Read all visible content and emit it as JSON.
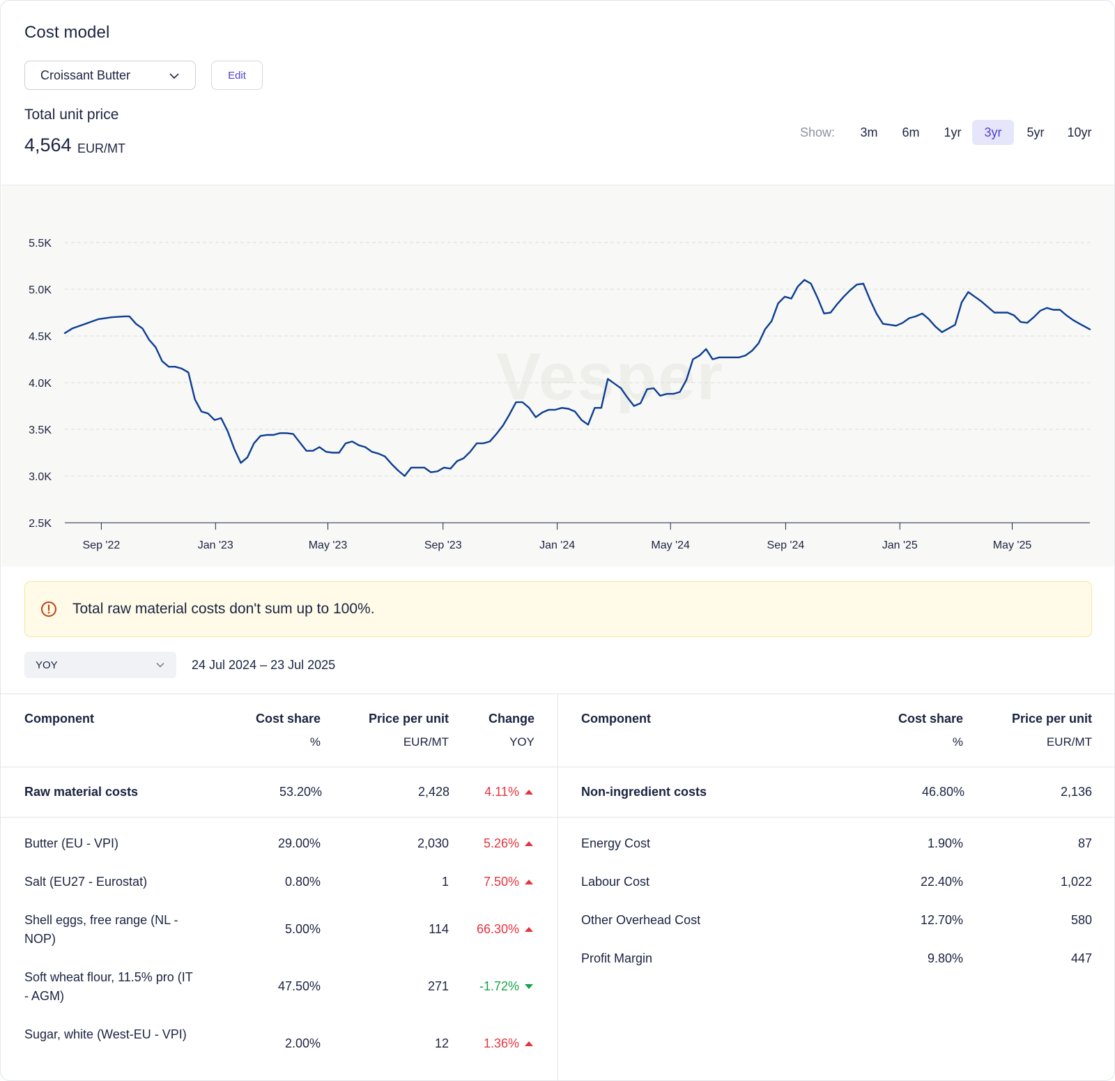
{
  "header": {
    "title": "Cost model",
    "product_select": "Croissant Butter",
    "edit_label": "Edit",
    "price_label": "Total unit price",
    "price_value": "4,564",
    "price_unit": "EUR/MT"
  },
  "range": {
    "show_label": "Show:",
    "options": [
      "3m",
      "6m",
      "1yr",
      "3yr",
      "5yr",
      "10yr"
    ],
    "active": "3yr"
  },
  "chart_data": {
    "type": "line",
    "watermark": "Vesper",
    "color": "#0b3d91",
    "ylim": [
      2500,
      5500
    ],
    "yticks": [
      2500,
      3000,
      3500,
      4000,
      4500,
      5000,
      5500
    ],
    "ytick_labels": [
      "2.5K",
      "3.0K",
      "3.5K",
      "4.0K",
      "4.5K",
      "5.0K",
      "5.5K"
    ],
    "xticks": [
      "2022-09-01",
      "2023-01-01",
      "2023-05-01",
      "2023-09-01",
      "2024-01-01",
      "2024-05-01",
      "2024-09-01",
      "2025-01-01",
      "2025-05-01"
    ],
    "xtick_labels": [
      "Sep '22",
      "Jan '23",
      "May '23",
      "Sep '23",
      "Jan '24",
      "May '24",
      "Sep '24",
      "Jan '25",
      "May '25"
    ],
    "xlim": [
      "2022-07-24",
      "2025-07-23"
    ],
    "series": [
      {
        "points": [
          [
            "2022-07-24",
            4530
          ],
          [
            "2022-08-01",
            4580
          ],
          [
            "2022-08-15",
            4630
          ],
          [
            "2022-08-29",
            4680
          ],
          [
            "2022-09-12",
            4700
          ],
          [
            "2022-09-26",
            4710
          ],
          [
            "2022-10-01",
            4710
          ],
          [
            "2022-10-08",
            4630
          ],
          [
            "2022-10-15",
            4580
          ],
          [
            "2022-10-22",
            4460
          ],
          [
            "2022-10-29",
            4380
          ],
          [
            "2022-11-05",
            4230
          ],
          [
            "2022-11-12",
            4170
          ],
          [
            "2022-11-19",
            4170
          ],
          [
            "2022-11-26",
            4150
          ],
          [
            "2022-12-03",
            4110
          ],
          [
            "2022-12-10",
            3820
          ],
          [
            "2022-12-17",
            3690
          ],
          [
            "2022-12-24",
            3670
          ],
          [
            "2022-12-31",
            3600
          ],
          [
            "2023-01-07",
            3620
          ],
          [
            "2023-01-14",
            3480
          ],
          [
            "2023-01-21",
            3290
          ],
          [
            "2023-01-28",
            3140
          ],
          [
            "2023-02-04",
            3200
          ],
          [
            "2023-02-11",
            3350
          ],
          [
            "2023-02-18",
            3430
          ],
          [
            "2023-02-25",
            3440
          ],
          [
            "2023-03-04",
            3440
          ],
          [
            "2023-03-11",
            3460
          ],
          [
            "2023-03-18",
            3460
          ],
          [
            "2023-03-25",
            3450
          ],
          [
            "2023-04-01",
            3360
          ],
          [
            "2023-04-08",
            3270
          ],
          [
            "2023-04-15",
            3270
          ],
          [
            "2023-04-22",
            3310
          ],
          [
            "2023-04-29",
            3260
          ],
          [
            "2023-05-06",
            3250
          ],
          [
            "2023-05-13",
            3250
          ],
          [
            "2023-05-20",
            3350
          ],
          [
            "2023-05-27",
            3370
          ],
          [
            "2023-06-03",
            3330
          ],
          [
            "2023-06-10",
            3310
          ],
          [
            "2023-06-17",
            3260
          ],
          [
            "2023-06-24",
            3240
          ],
          [
            "2023-07-01",
            3210
          ],
          [
            "2023-07-08",
            3130
          ],
          [
            "2023-07-15",
            3060
          ],
          [
            "2023-07-22",
            3000
          ],
          [
            "2023-07-29",
            3090
          ],
          [
            "2023-08-05",
            3090
          ],
          [
            "2023-08-12",
            3090
          ],
          [
            "2023-08-19",
            3040
          ],
          [
            "2023-08-26",
            3050
          ],
          [
            "2023-09-02",
            3090
          ],
          [
            "2023-09-09",
            3080
          ],
          [
            "2023-09-16",
            3160
          ],
          [
            "2023-09-23",
            3190
          ],
          [
            "2023-09-30",
            3260
          ],
          [
            "2023-10-07",
            3350
          ],
          [
            "2023-10-14",
            3350
          ],
          [
            "2023-10-21",
            3370
          ],
          [
            "2023-10-28",
            3450
          ],
          [
            "2023-11-04",
            3540
          ],
          [
            "2023-11-11",
            3660
          ],
          [
            "2023-11-18",
            3790
          ],
          [
            "2023-11-25",
            3790
          ],
          [
            "2023-12-02",
            3730
          ],
          [
            "2023-12-09",
            3630
          ],
          [
            "2023-12-16",
            3680
          ],
          [
            "2023-12-23",
            3710
          ],
          [
            "2023-12-30",
            3710
          ],
          [
            "2024-01-06",
            3730
          ],
          [
            "2024-01-13",
            3720
          ],
          [
            "2024-01-20",
            3690
          ],
          [
            "2024-01-27",
            3600
          ],
          [
            "2024-02-03",
            3550
          ],
          [
            "2024-02-10",
            3730
          ],
          [
            "2024-02-17",
            3730
          ],
          [
            "2024-02-24",
            4040
          ],
          [
            "2024-03-02",
            3990
          ],
          [
            "2024-03-09",
            3940
          ],
          [
            "2024-03-16",
            3840
          ],
          [
            "2024-03-23",
            3750
          ],
          [
            "2024-03-30",
            3780
          ],
          [
            "2024-04-06",
            3930
          ],
          [
            "2024-04-13",
            3940
          ],
          [
            "2024-04-20",
            3860
          ],
          [
            "2024-04-27",
            3880
          ],
          [
            "2024-05-04",
            3880
          ],
          [
            "2024-05-11",
            3900
          ],
          [
            "2024-05-18",
            4030
          ],
          [
            "2024-05-25",
            4250
          ],
          [
            "2024-06-01",
            4290
          ],
          [
            "2024-06-08",
            4360
          ],
          [
            "2024-06-15",
            4250
          ],
          [
            "2024-06-22",
            4270
          ],
          [
            "2024-06-29",
            4270
          ],
          [
            "2024-07-06",
            4270
          ],
          [
            "2024-07-13",
            4270
          ],
          [
            "2024-07-20",
            4290
          ],
          [
            "2024-07-27",
            4340
          ],
          [
            "2024-08-03",
            4420
          ],
          [
            "2024-08-10",
            4570
          ],
          [
            "2024-08-17",
            4660
          ],
          [
            "2024-08-24",
            4850
          ],
          [
            "2024-08-31",
            4920
          ],
          [
            "2024-09-07",
            4900
          ],
          [
            "2024-09-14",
            5030
          ],
          [
            "2024-09-21",
            5100
          ],
          [
            "2024-09-28",
            5060
          ],
          [
            "2024-10-05",
            4910
          ],
          [
            "2024-10-12",
            4740
          ],
          [
            "2024-10-19",
            4750
          ],
          [
            "2024-10-26",
            4840
          ],
          [
            "2024-11-02",
            4920
          ],
          [
            "2024-11-09",
            4990
          ],
          [
            "2024-11-16",
            5050
          ],
          [
            "2024-11-23",
            5060
          ],
          [
            "2024-11-30",
            4890
          ],
          [
            "2024-12-07",
            4740
          ],
          [
            "2024-12-14",
            4630
          ],
          [
            "2024-12-21",
            4620
          ],
          [
            "2024-12-28",
            4610
          ],
          [
            "2025-01-04",
            4640
          ],
          [
            "2025-01-11",
            4690
          ],
          [
            "2025-01-18",
            4710
          ],
          [
            "2025-01-25",
            4740
          ],
          [
            "2025-02-01",
            4680
          ],
          [
            "2025-02-08",
            4600
          ],
          [
            "2025-02-15",
            4540
          ],
          [
            "2025-02-22",
            4580
          ],
          [
            "2025-03-01",
            4620
          ],
          [
            "2025-03-08",
            4860
          ],
          [
            "2025-03-15",
            4970
          ],
          [
            "2025-03-22",
            4920
          ],
          [
            "2025-03-29",
            4870
          ],
          [
            "2025-04-05",
            4810
          ],
          [
            "2025-04-12",
            4750
          ],
          [
            "2025-04-19",
            4750
          ],
          [
            "2025-04-26",
            4750
          ],
          [
            "2025-05-03",
            4720
          ],
          [
            "2025-05-10",
            4650
          ],
          [
            "2025-05-17",
            4640
          ],
          [
            "2025-05-24",
            4700
          ],
          [
            "2025-05-31",
            4770
          ],
          [
            "2025-06-07",
            4800
          ],
          [
            "2025-06-14",
            4780
          ],
          [
            "2025-06-21",
            4780
          ],
          [
            "2025-06-28",
            4720
          ],
          [
            "2025-07-05",
            4670
          ],
          [
            "2025-07-12",
            4630
          ],
          [
            "2025-07-23",
            4570
          ]
        ]
      }
    ]
  },
  "warning": {
    "text": "Total raw material costs don't sum up to 100%."
  },
  "period": {
    "select": "YOY",
    "date_range": "24 Jul 2024 – 23 Jul 2025"
  },
  "left_table": {
    "headers": {
      "component": "Component",
      "share": "Cost share",
      "share_unit": "%",
      "price": "Price per unit",
      "price_unit": "EUR/MT",
      "change": "Change",
      "change_unit": "YOY"
    },
    "total": {
      "name": "Raw material costs",
      "share": "53.20%",
      "price": "2,428",
      "change": "4.11%",
      "dir": "up"
    },
    "rows": [
      {
        "name": "Butter (EU - VPI)",
        "share": "29.00%",
        "price": "2,030",
        "change": "5.26%",
        "dir": "up"
      },
      {
        "name": "Salt (EU27 - Eurostat)",
        "share": "0.80%",
        "price": "1",
        "change": "7.50%",
        "dir": "up"
      },
      {
        "name": "Shell eggs, free range (NL - NOP)",
        "share": "5.00%",
        "price": "114",
        "change": "66.30%",
        "dir": "up"
      },
      {
        "name": "Soft wheat flour, 11.5% pro (IT - AGM)",
        "share": "47.50%",
        "price": "271",
        "change": "-1.72%",
        "dir": "down"
      },
      {
        "name": "Sugar, white (West-EU - VPI)",
        "share": "2.00%",
        "price": "12",
        "change": "1.36%",
        "dir": "up"
      }
    ]
  },
  "right_table": {
    "headers": {
      "component": "Component",
      "share": "Cost share",
      "share_unit": "%",
      "price": "Price per unit",
      "price_unit": "EUR/MT"
    },
    "total": {
      "name": "Non-ingredient costs",
      "share": "46.80%",
      "price": "2,136"
    },
    "rows": [
      {
        "name": "Energy Cost",
        "share": "1.90%",
        "price": "87"
      },
      {
        "name": "Labour Cost",
        "share": "22.40%",
        "price": "1,022"
      },
      {
        "name": "Other Overhead Cost",
        "share": "12.70%",
        "price": "580"
      },
      {
        "name": "Profit Margin",
        "share": "9.80%",
        "price": "447"
      }
    ]
  }
}
